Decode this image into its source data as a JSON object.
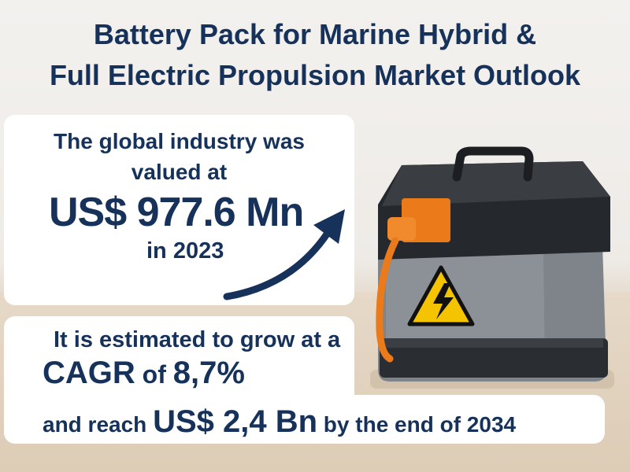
{
  "title": {
    "line1": "Battery Pack for Marine Hybrid &",
    "line2": "Full Electric Propulsion Market Outlook"
  },
  "valuation": {
    "line1": "The global industry was",
    "line2": "valued at",
    "amount": "US$ 977.6 Mn",
    "year_text": "in 2023"
  },
  "growth": {
    "intro": "It is estimated to grow at a",
    "cagr_label": "CAGR",
    "cagr_of": " of ",
    "cagr_value": "8,7%",
    "reach_prefix": "and reach ",
    "reach_value": "US$ 2,4 Bn",
    "reach_suffix": " by the end of 2034"
  },
  "colors": {
    "text": "#17325a",
    "connector": "#ea7a1a",
    "warning": "#f5c400"
  },
  "icons": {
    "arrow": "upward-trend-arrow-icon",
    "battery": "battery-pack-image",
    "warning": "high-voltage-warning-icon"
  }
}
